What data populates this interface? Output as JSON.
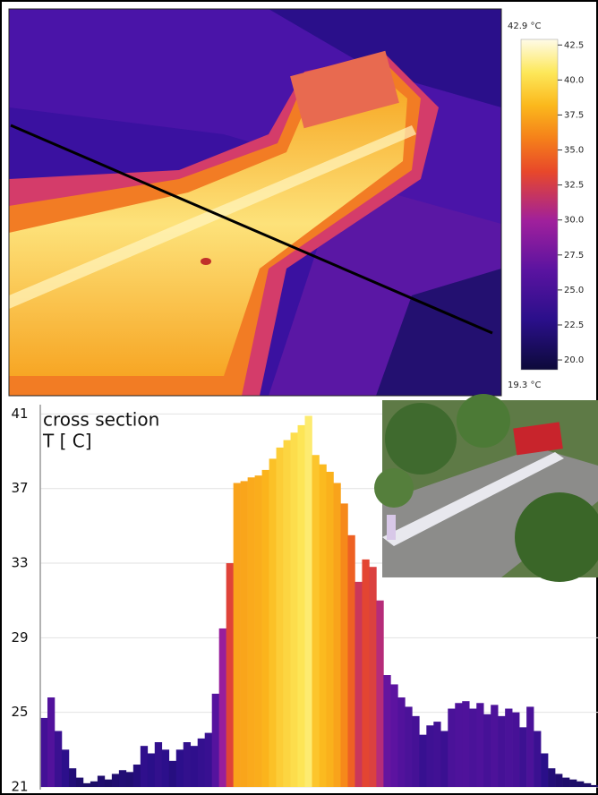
{
  "colorbar": {
    "max": {
      "value": 42.9,
      "label": "42.9 °C"
    },
    "min": {
      "value": 19.3,
      "label": "19.3 °C"
    },
    "ticks": [
      {
        "value": 42.5,
        "label": "42.5"
      },
      {
        "value": 40,
        "label": "40.0"
      },
      {
        "value": 37.5,
        "label": "37.5"
      },
      {
        "value": 35,
        "label": "35.0"
      },
      {
        "value": 32.5,
        "label": "32.5"
      },
      {
        "value": 30,
        "label": "30.0"
      },
      {
        "value": 27.5,
        "label": "27.5"
      },
      {
        "value": 25,
        "label": "25.0"
      },
      {
        "value": 22.5,
        "label": "22.5"
      },
      {
        "value": 20,
        "label": "20.0"
      }
    ]
  },
  "chart_data": {
    "type": "bar",
    "title": "cross section",
    "ylabel": "T [ C]",
    "values": [
      24.7,
      25.8,
      24.0,
      23.0,
      22.0,
      21.5,
      21.2,
      21.3,
      21.6,
      21.4,
      21.7,
      21.9,
      21.8,
      22.2,
      23.2,
      22.8,
      23.4,
      23.0,
      22.4,
      23.0,
      23.4,
      23.2,
      23.6,
      23.9,
      26.0,
      29.5,
      33.0,
      37.3,
      37.4,
      37.6,
      37.7,
      38.0,
      38.6,
      39.2,
      39.6,
      40.0,
      40.4,
      40.9,
      38.8,
      38.3,
      37.9,
      37.3,
      36.2,
      34.5,
      32.0,
      33.2,
      32.8,
      31.0,
      27.0,
      26.5,
      25.8,
      25.3,
      24.8,
      23.8,
      24.3,
      24.5,
      24.0,
      25.2,
      25.5,
      25.6,
      25.2,
      25.5,
      24.9,
      25.4,
      24.8,
      25.2,
      25.0,
      24.2,
      25.3,
      24.0,
      22.8,
      22.0,
      21.7,
      21.5,
      21.4,
      21.3,
      21.2,
      21.1
    ],
    "ylim": [
      21,
      41.5
    ],
    "yticks": [
      21,
      25,
      29,
      33,
      37,
      41
    ],
    "grid": true
  }
}
